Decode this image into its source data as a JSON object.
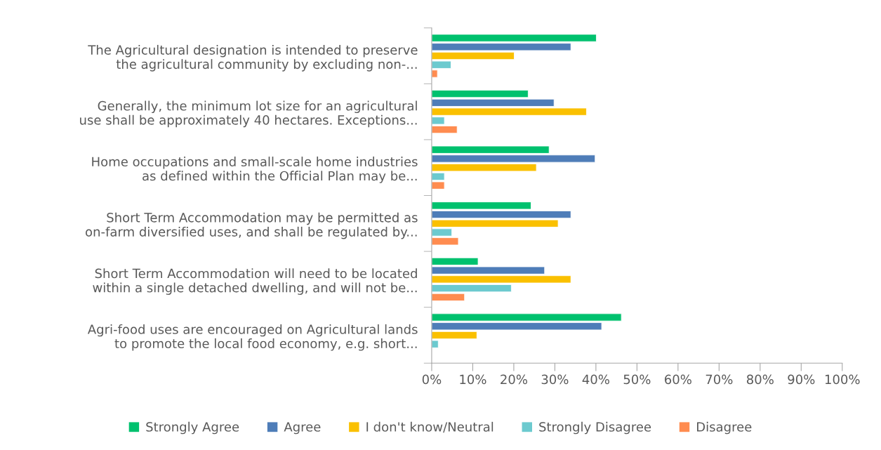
{
  "chart_data": {
    "type": "bar",
    "orientation": "horizontal",
    "categories": [
      "The Agricultural designation is intended to preserve\nthe agricultural community by excluding non-...",
      "Generally, the minimum lot size for an agricultural\nuse shall be approximately 40 hectares. Exceptions...",
      "Home occupations and small-scale home industries\nas defined within the Official Plan may be...",
      "Short Term Accommodation may be permitted as\non-farm diversified uses, and shall be regulated by...",
      "Short Term Accommodation will need to be located\nwithin a single detached dwelling, and will not be...",
      "Agri-food uses are encouraged on Agricultural lands\nto promote the local food economy, e.g. short..."
    ],
    "series": [
      {
        "name": "Strongly Agree",
        "color": "#00c16e",
        "values": [
          40.1,
          23.5,
          28.6,
          24.2,
          11.3,
          46.2
        ]
      },
      {
        "name": "Agree",
        "color": "#4e7db8",
        "values": [
          33.9,
          29.8,
          39.8,
          33.9,
          27.5,
          41.4
        ]
      },
      {
        "name": "I don't know/Neutral",
        "color": "#fac000",
        "values": [
          20.1,
          37.7,
          25.5,
          30.8,
          33.9,
          11.0
        ]
      },
      {
        "name": "Strongly Disagree",
        "color": "#6ccacf",
        "values": [
          4.7,
          3.1,
          3.1,
          4.9,
          19.4,
          1.6
        ]
      },
      {
        "name": "Disagree",
        "color": "#ff8c50",
        "values": [
          1.4,
          6.2,
          3.1,
          6.5,
          8.0,
          null
        ]
      }
    ],
    "xlim": [
      0,
      100
    ],
    "xticks": [
      {
        "value": 0,
        "label": "0%"
      },
      {
        "value": 10,
        "label": "10%"
      },
      {
        "value": 20,
        "label": "20%"
      },
      {
        "value": 30,
        "label": "30%"
      },
      {
        "value": 40,
        "label": "40%"
      },
      {
        "value": 50,
        "label": "50%"
      },
      {
        "value": 60,
        "label": "60%"
      },
      {
        "value": 70,
        "label": "70%"
      },
      {
        "value": 80,
        "label": "80%"
      },
      {
        "value": 90,
        "label": "90%"
      },
      {
        "value": 100,
        "label": "100%"
      }
    ],
    "grid": false,
    "legend": "bottom"
  }
}
